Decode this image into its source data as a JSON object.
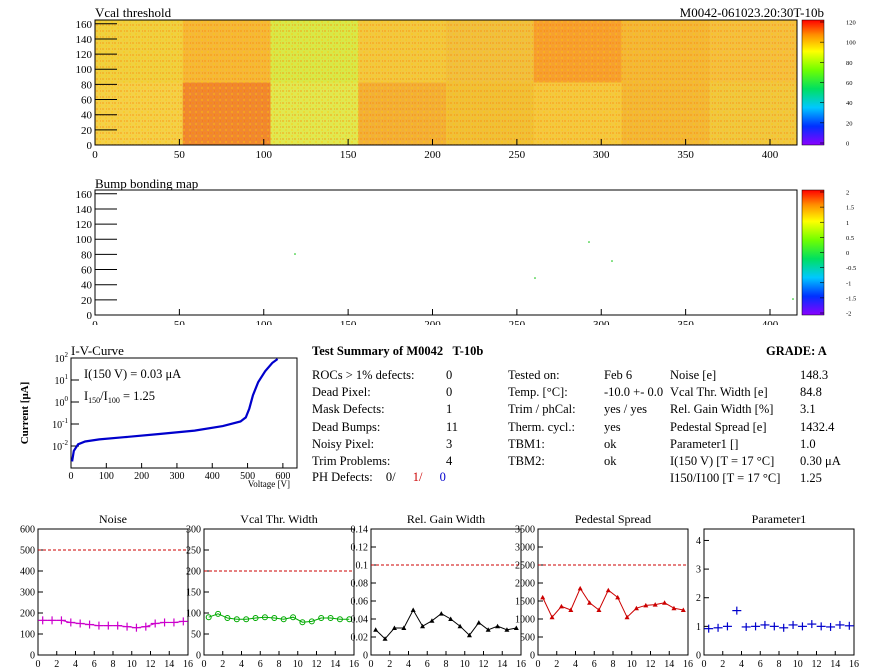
{
  "vcal_map": {
    "title": "Vcal threshold",
    "module_id": "M0042-061023.20:30T-10b",
    "x_ticks": [
      "0",
      "50",
      "100",
      "150",
      "200",
      "250",
      "300",
      "350",
      "400"
    ],
    "y_ticks": [
      "0",
      "20",
      "40",
      "60",
      "80",
      "100",
      "120",
      "140",
      "160"
    ],
    "palette_ticks": [
      "0",
      "20",
      "40",
      "60",
      "80",
      "100",
      "120"
    ]
  },
  "bump_map": {
    "title": "Bump bonding map",
    "x_ticks": [
      "0",
      "50",
      "100",
      "150",
      "200",
      "250",
      "300",
      "350",
      "400"
    ],
    "y_ticks": [
      "0",
      "20",
      "40",
      "60",
      "80",
      "100",
      "120",
      "140",
      "160"
    ],
    "palette_ticks": [
      "-2",
      "-1.5",
      "-1",
      "-0.5",
      "0",
      "0.5",
      "1",
      "1.5",
      "2"
    ]
  },
  "iv": {
    "title": "I-V-Curve",
    "ylabel": "Current [μA]",
    "xlabel": "Voltage [V]",
    "x_ticks": [
      "0",
      "100",
      "200",
      "300",
      "400",
      "500",
      "600"
    ],
    "i150": "I(150 V) = 0.03 μA",
    "ratio_label": "I",
    "ratio_sub1": "150",
    "ratio_sep": "/I",
    "ratio_sub2": "100",
    "ratio_val": " =  1.25"
  },
  "summary": {
    "header": "Test Summary of M0042",
    "tag": "T-10b",
    "grade": "GRADE:  A",
    "left_rows": [
      {
        "label": "ROCs > 1% defects:",
        "value": "0"
      },
      {
        "label": "Dead Pixel:",
        "value": "0"
      },
      {
        "label": "Mask Defects:",
        "value": "1"
      },
      {
        "label": "Dead Bumps:",
        "value": "11"
      },
      {
        "label": "Noisy Pixel:",
        "value": "3"
      },
      {
        "label": "Trim Problems:",
        "value": "4"
      }
    ],
    "ph_label": "PH Defects:",
    "ph_a": "0/",
    "ph_b": "1/",
    "ph_c": "0",
    "mid_rows": [
      {
        "label": "Tested on:",
        "value": "Feb 6"
      },
      {
        "label": "Temp. [°C]:",
        "value": "-10.0 +- 0.0"
      },
      {
        "label": "Trim / phCal:",
        "value": "yes / yes"
      },
      {
        "label": "Therm. cycl.:",
        "value": "yes"
      },
      {
        "label": "TBM1:",
        "value": "ok"
      },
      {
        "label": "TBM2:",
        "value": "ok"
      }
    ],
    "right_rows": [
      {
        "label": "Noise [e]",
        "value": "148.3"
      },
      {
        "label": "Vcal Thr. Width [e]",
        "value": "84.8"
      },
      {
        "label": "Rel. Gain Width [%]",
        "value": "3.1"
      },
      {
        "label": "Pedestal Spread [e]",
        "value": "1432.4"
      },
      {
        "label": "Parameter1 []",
        "value": "1.0"
      },
      {
        "label": "I(150 V) [T = 17 °C]",
        "value": "0.30 μA"
      },
      {
        "label": "I150/I100  [T = 17 °C]",
        "value": "1.25"
      }
    ]
  },
  "chart_data": [
    {
      "type": "line",
      "title": "Noise",
      "x": [
        0,
        1,
        2,
        3,
        4,
        5,
        6,
        7,
        8,
        9,
        10,
        11,
        12,
        13,
        14,
        15
      ],
      "values": [
        165,
        165,
        165,
        155,
        150,
        145,
        140,
        140,
        140,
        135,
        130,
        135,
        150,
        155,
        155,
        160
      ],
      "ylim": [
        0,
        600
      ],
      "yticks": [
        0,
        100,
        200,
        300,
        400,
        500,
        600
      ],
      "xlim": [
        0,
        16
      ],
      "cut": 500,
      "color": "#cc00cc",
      "marker": "cross"
    },
    {
      "type": "line",
      "title": "Vcal Thr. Width",
      "x": [
        0,
        1,
        2,
        3,
        4,
        5,
        6,
        7,
        8,
        9,
        10,
        11,
        12,
        13,
        14,
        15
      ],
      "values": [
        90,
        98,
        88,
        85,
        85,
        88,
        90,
        88,
        85,
        90,
        78,
        80,
        88,
        88,
        85,
        85
      ],
      "ylim": [
        0,
        300
      ],
      "yticks": [
        0,
        50,
        100,
        150,
        200,
        250,
        300
      ],
      "xlim": [
        0,
        16
      ],
      "cut": 200,
      "color": "#00aa00",
      "marker": "circle"
    },
    {
      "type": "line",
      "title": "Rel. Gain Width",
      "x": [
        0,
        1,
        2,
        3,
        4,
        5,
        6,
        7,
        8,
        9,
        10,
        11,
        12,
        13,
        14,
        15
      ],
      "values": [
        0.028,
        0.018,
        0.03,
        0.03,
        0.05,
        0.032,
        0.038,
        0.046,
        0.04,
        0.032,
        0.022,
        0.036,
        0.028,
        0.032,
        0.028,
        0.03
      ],
      "ylim": [
        0,
        0.14
      ],
      "yticks": [
        0,
        0.02,
        0.04,
        0.06,
        0.08,
        0.1,
        0.12,
        0.14
      ],
      "xlim": [
        0,
        16
      ],
      "cut": 0.1,
      "color": "#000000",
      "marker": "triangle"
    },
    {
      "type": "line",
      "title": "Pedestal Spread",
      "x": [
        0,
        1,
        2,
        3,
        4,
        5,
        6,
        7,
        8,
        9,
        10,
        11,
        12,
        13,
        14,
        15
      ],
      "values": [
        1600,
        1050,
        1350,
        1250,
        1850,
        1450,
        1250,
        1800,
        1600,
        1050,
        1300,
        1380,
        1400,
        1450,
        1300,
        1250
      ],
      "ylim": [
        0,
        3500
      ],
      "yticks": [
        0,
        500,
        1000,
        1500,
        2000,
        2500,
        3000,
        3500
      ],
      "xlim": [
        0,
        16
      ],
      "cut": 2500,
      "color": "#cc0000",
      "marker": "triangle"
    },
    {
      "type": "line",
      "title": "Parameter1",
      "x": [
        0,
        1,
        2,
        3,
        4,
        5,
        6,
        7,
        8,
        9,
        10,
        11,
        12,
        13,
        14,
        15
      ],
      "values": [
        0.92,
        0.95,
        1.0,
        1.55,
        0.98,
        1.0,
        1.05,
        1.0,
        0.95,
        1.05,
        1.0,
        1.08,
        1.0,
        0.98,
        1.05,
        1.02
      ],
      "ylim": [
        0,
        4.4
      ],
      "yticks": [
        0,
        1,
        2,
        3,
        4
      ],
      "xlim": [
        0,
        16
      ],
      "cut": null,
      "color": "#0000cc",
      "marker": "cross"
    }
  ],
  "ticks_small_x": [
    "0",
    "2",
    "4",
    "6",
    "8",
    "10",
    "12",
    "14",
    "16"
  ]
}
